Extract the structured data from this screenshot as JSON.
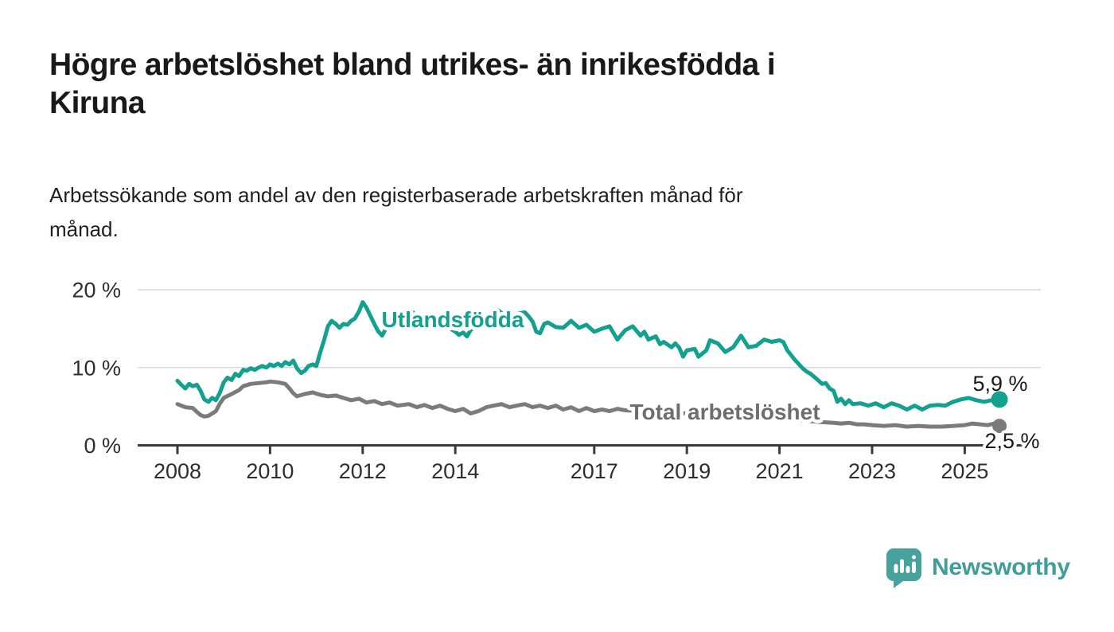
{
  "header": {
    "title_line1": "Högre arbetslöshet bland utrikes- än inrikesfödda i",
    "title_line2": "Kiruna",
    "subtitle_line1": "Arbetssökande som andel av den registerbaserade arbetskraften månad för",
    "subtitle_line2": "månad."
  },
  "footer": {
    "brand": "Newsworthy"
  },
  "colors": {
    "series_teal": "#13a18f",
    "series_gray": "#7b7b7b",
    "series_label_gray": "#6e6e6e",
    "axis": "#3a3a3a",
    "grid": "#d8d8d8",
    "tick_text": "#2e2e2e",
    "value_text": "#1a1a1a",
    "logo_teal": "#47a19c",
    "background": "#ffffff"
  },
  "chart_data": {
    "type": "line",
    "title": "Högre arbetslöshet bland utrikes- än inrikesfödda i Kiruna",
    "subtitle": "Arbetssökande som andel av den registerbaserade arbetskraften månad för månad.",
    "xlabel": "",
    "ylabel": "",
    "x_unit": "decimal year (monthly data)",
    "y_unit": "percent of labour force",
    "xlim": [
      2007.14,
      2026.65
    ],
    "ylim": [
      0,
      21
    ],
    "grid": "horizontal-only",
    "legend_position": "inline-labels-on-lines",
    "yticks": [
      {
        "label": "0 %",
        "value": 0
      },
      {
        "label": "10 %",
        "value": 10
      },
      {
        "label": "20 %",
        "value": 20
      }
    ],
    "xticks": [
      {
        "label": "2008",
        "value": 2008
      },
      {
        "label": "2010",
        "value": 2010
      },
      {
        "label": "2012",
        "value": 2012
      },
      {
        "label": "2014",
        "value": 2014
      },
      {
        "label": "2017",
        "value": 2017
      },
      {
        "label": "2019",
        "value": 2019
      },
      {
        "label": "2021",
        "value": 2021
      },
      {
        "label": "2023",
        "value": 2023
      },
      {
        "label": "2025",
        "value": 2025
      }
    ],
    "series": [
      {
        "name": "Total arbetslöshet",
        "color": "#7b7b7b",
        "label_color": "#6e6e6e",
        "end_label": "2,5 %",
        "end_value": 2.5,
        "end_dot": true,
        "points": [
          [
            2008.0,
            5.3
          ],
          [
            2008.17,
            4.9
          ],
          [
            2008.33,
            4.8
          ],
          [
            2008.42,
            4.3
          ],
          [
            2008.5,
            3.9
          ],
          [
            2008.58,
            3.7
          ],
          [
            2008.67,
            3.8
          ],
          [
            2008.83,
            4.4
          ],
          [
            2008.92,
            5.4
          ],
          [
            2009.0,
            6.1
          ],
          [
            2009.17,
            6.6
          ],
          [
            2009.33,
            7.1
          ],
          [
            2009.42,
            7.6
          ],
          [
            2009.58,
            7.9
          ],
          [
            2009.75,
            8.0
          ],
          [
            2009.92,
            8.1
          ],
          [
            2010.0,
            8.2
          ],
          [
            2010.17,
            8.1
          ],
          [
            2010.33,
            7.9
          ],
          [
            2010.42,
            7.3
          ],
          [
            2010.5,
            6.7
          ],
          [
            2010.58,
            6.3
          ],
          [
            2010.75,
            6.6
          ],
          [
            2010.92,
            6.8
          ],
          [
            2011.08,
            6.5
          ],
          [
            2011.25,
            6.3
          ],
          [
            2011.42,
            6.4
          ],
          [
            2011.58,
            6.1
          ],
          [
            2011.75,
            5.8
          ],
          [
            2011.92,
            6.0
          ],
          [
            2012.08,
            5.5
          ],
          [
            2012.25,
            5.7
          ],
          [
            2012.42,
            5.3
          ],
          [
            2012.58,
            5.5
          ],
          [
            2012.75,
            5.1
          ],
          [
            2013.0,
            5.3
          ],
          [
            2013.17,
            4.9
          ],
          [
            2013.33,
            5.2
          ],
          [
            2013.5,
            4.8
          ],
          [
            2013.67,
            5.1
          ],
          [
            2013.83,
            4.7
          ],
          [
            2014.0,
            4.4
          ],
          [
            2014.17,
            4.7
          ],
          [
            2014.33,
            4.1
          ],
          [
            2014.5,
            4.4
          ],
          [
            2014.67,
            4.9
          ],
          [
            2014.83,
            5.1
          ],
          [
            2015.0,
            5.3
          ],
          [
            2015.17,
            4.9
          ],
          [
            2015.33,
            5.1
          ],
          [
            2015.5,
            5.3
          ],
          [
            2015.67,
            4.9
          ],
          [
            2015.83,
            5.1
          ],
          [
            2016.0,
            4.8
          ],
          [
            2016.17,
            5.1
          ],
          [
            2016.33,
            4.6
          ],
          [
            2016.5,
            4.9
          ],
          [
            2016.67,
            4.4
          ],
          [
            2016.83,
            4.8
          ],
          [
            2017.0,
            4.4
          ],
          [
            2017.17,
            4.6
          ],
          [
            2017.33,
            4.4
          ],
          [
            2017.5,
            4.7
          ],
          [
            2017.67,
            4.5
          ],
          [
            2018.0,
            4.4
          ],
          [
            2018.5,
            4.2
          ],
          [
            2019.0,
            4.1
          ],
          [
            2019.5,
            3.9
          ],
          [
            2020.0,
            4.1
          ],
          [
            2020.5,
            3.8
          ],
          [
            2021.0,
            3.5
          ],
          [
            2021.5,
            3.2
          ],
          [
            2021.9,
            3.0
          ],
          [
            2022.17,
            2.9
          ],
          [
            2022.33,
            2.8
          ],
          [
            2022.5,
            2.9
          ],
          [
            2022.67,
            2.7
          ],
          [
            2022.83,
            2.7
          ],
          [
            2023.0,
            2.6
          ],
          [
            2023.25,
            2.5
          ],
          [
            2023.5,
            2.6
          ],
          [
            2023.75,
            2.4
          ],
          [
            2024.0,
            2.5
          ],
          [
            2024.25,
            2.4
          ],
          [
            2024.5,
            2.4
          ],
          [
            2024.75,
            2.5
          ],
          [
            2025.0,
            2.6
          ],
          [
            2025.17,
            2.8
          ],
          [
            2025.33,
            2.7
          ],
          [
            2025.5,
            2.6
          ],
          [
            2025.64,
            2.8
          ],
          [
            2025.75,
            2.5
          ]
        ]
      },
      {
        "name": "Utlandsfödda",
        "color": "#13a18f",
        "label_color": "#13a18f",
        "end_label": "5,9 %",
        "end_value": 5.9,
        "end_dot": true,
        "points": [
          [
            2008.0,
            8.3
          ],
          [
            2008.08,
            7.8
          ],
          [
            2008.17,
            7.3
          ],
          [
            2008.25,
            7.9
          ],
          [
            2008.33,
            7.6
          ],
          [
            2008.42,
            7.8
          ],
          [
            2008.5,
            7.0
          ],
          [
            2008.58,
            5.9
          ],
          [
            2008.67,
            5.6
          ],
          [
            2008.75,
            6.1
          ],
          [
            2008.83,
            5.8
          ],
          [
            2008.92,
            6.8
          ],
          [
            2009.0,
            8.1
          ],
          [
            2009.08,
            8.7
          ],
          [
            2009.17,
            8.4
          ],
          [
            2009.25,
            9.2
          ],
          [
            2009.33,
            8.9
          ],
          [
            2009.42,
            9.7
          ],
          [
            2009.5,
            9.6
          ],
          [
            2009.58,
            9.9
          ],
          [
            2009.67,
            9.7
          ],
          [
            2009.75,
            10.0
          ],
          [
            2009.83,
            10.2
          ],
          [
            2009.92,
            10.0
          ],
          [
            2010.0,
            10.4
          ],
          [
            2010.08,
            10.2
          ],
          [
            2010.17,
            10.5
          ],
          [
            2010.25,
            10.2
          ],
          [
            2010.33,
            10.7
          ],
          [
            2010.42,
            10.4
          ],
          [
            2010.5,
            10.9
          ],
          [
            2010.58,
            9.9
          ],
          [
            2010.67,
            9.3
          ],
          [
            2010.75,
            9.6
          ],
          [
            2010.83,
            10.2
          ],
          [
            2010.92,
            10.4
          ],
          [
            2011.0,
            10.2
          ],
          [
            2011.08,
            11.9
          ],
          [
            2011.17,
            13.6
          ],
          [
            2011.25,
            15.3
          ],
          [
            2011.33,
            16.0
          ],
          [
            2011.42,
            15.6
          ],
          [
            2011.5,
            15.1
          ],
          [
            2011.58,
            15.6
          ],
          [
            2011.67,
            15.5
          ],
          [
            2011.75,
            16.0
          ],
          [
            2011.83,
            16.3
          ],
          [
            2011.92,
            17.2
          ],
          [
            2012.0,
            18.4
          ],
          [
            2012.08,
            17.7
          ],
          [
            2012.17,
            16.6
          ],
          [
            2012.25,
            15.6
          ],
          [
            2012.33,
            14.7
          ],
          [
            2012.42,
            14.1
          ],
          [
            2012.5,
            15.0
          ],
          [
            2012.58,
            15.6
          ],
          [
            2012.67,
            15.3
          ],
          [
            2012.75,
            15.8
          ],
          [
            2012.83,
            16.0
          ],
          [
            2012.92,
            16.3
          ],
          [
            2013.0,
            16.6
          ],
          [
            2013.08,
            17.1
          ],
          [
            2013.17,
            16.6
          ],
          [
            2013.25,
            15.2
          ],
          [
            2013.33,
            15.8
          ],
          [
            2013.42,
            16.3
          ],
          [
            2013.5,
            16.6
          ],
          [
            2013.58,
            16.1
          ],
          [
            2013.67,
            15.8
          ],
          [
            2013.75,
            15.4
          ],
          [
            2013.83,
            15.2
          ],
          [
            2013.92,
            14.9
          ],
          [
            2014.0,
            14.6
          ],
          [
            2014.08,
            14.2
          ],
          [
            2014.17,
            14.5
          ],
          [
            2014.25,
            14.0
          ],
          [
            2014.33,
            14.8
          ],
          [
            2014.5,
            15.6
          ],
          [
            2014.67,
            16.3
          ],
          [
            2014.83,
            17.0
          ],
          [
            2014.92,
            17.4
          ],
          [
            2015.0,
            17.0
          ],
          [
            2015.17,
            16.6
          ],
          [
            2015.33,
            16.9
          ],
          [
            2015.5,
            17.1
          ],
          [
            2015.58,
            16.6
          ],
          [
            2015.67,
            15.9
          ],
          [
            2015.75,
            14.6
          ],
          [
            2015.83,
            14.4
          ],
          [
            2015.92,
            15.6
          ],
          [
            2016.0,
            15.8
          ],
          [
            2016.17,
            15.2
          ],
          [
            2016.33,
            15.1
          ],
          [
            2016.5,
            16.0
          ],
          [
            2016.67,
            15.1
          ],
          [
            2016.83,
            15.5
          ],
          [
            2017.0,
            14.6
          ],
          [
            2017.17,
            15.0
          ],
          [
            2017.33,
            15.3
          ],
          [
            2017.5,
            13.6
          ],
          [
            2017.67,
            14.8
          ],
          [
            2017.83,
            15.3
          ],
          [
            2018.0,
            14.1
          ],
          [
            2018.08,
            14.6
          ],
          [
            2018.17,
            13.6
          ],
          [
            2018.33,
            14.0
          ],
          [
            2018.42,
            13.0
          ],
          [
            2018.5,
            13.3
          ],
          [
            2018.67,
            12.6
          ],
          [
            2018.75,
            13.1
          ],
          [
            2018.83,
            12.6
          ],
          [
            2018.92,
            11.4
          ],
          [
            2019.0,
            12.2
          ],
          [
            2019.17,
            12.4
          ],
          [
            2019.25,
            11.4
          ],
          [
            2019.42,
            12.2
          ],
          [
            2019.5,
            13.5
          ],
          [
            2019.67,
            13.1
          ],
          [
            2019.83,
            12.0
          ],
          [
            2020.0,
            12.6
          ],
          [
            2020.17,
            14.1
          ],
          [
            2020.33,
            12.6
          ],
          [
            2020.5,
            12.8
          ],
          [
            2020.67,
            13.6
          ],
          [
            2020.83,
            13.3
          ],
          [
            2021.0,
            13.5
          ],
          [
            2021.08,
            13.3
          ],
          [
            2021.17,
            12.2
          ],
          [
            2021.33,
            11.0
          ],
          [
            2021.5,
            9.9
          ],
          [
            2021.58,
            9.5
          ],
          [
            2021.67,
            9.2
          ],
          [
            2021.83,
            8.4
          ],
          [
            2021.92,
            7.9
          ],
          [
            2022.0,
            8.0
          ],
          [
            2022.08,
            7.3
          ],
          [
            2022.17,
            7.0
          ],
          [
            2022.25,
            5.6
          ],
          [
            2022.33,
            6.0
          ],
          [
            2022.42,
            5.3
          ],
          [
            2022.5,
            5.8
          ],
          [
            2022.58,
            5.3
          ],
          [
            2022.75,
            5.4
          ],
          [
            2022.92,
            5.1
          ],
          [
            2023.08,
            5.4
          ],
          [
            2023.25,
            4.9
          ],
          [
            2023.42,
            5.4
          ],
          [
            2023.58,
            5.1
          ],
          [
            2023.75,
            4.6
          ],
          [
            2023.92,
            5.1
          ],
          [
            2024.08,
            4.6
          ],
          [
            2024.25,
            5.1
          ],
          [
            2024.42,
            5.2
          ],
          [
            2024.58,
            5.1
          ],
          [
            2024.75,
            5.6
          ],
          [
            2024.92,
            5.9
          ],
          [
            2025.08,
            6.1
          ],
          [
            2025.25,
            5.8
          ],
          [
            2025.42,
            5.6
          ],
          [
            2025.58,
            5.8
          ],
          [
            2025.75,
            5.9
          ]
        ]
      }
    ]
  }
}
